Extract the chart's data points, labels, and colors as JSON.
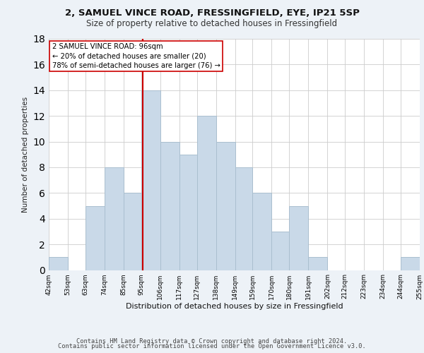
{
  "title1": "2, SAMUEL VINCE ROAD, FRESSINGFIELD, EYE, IP21 5SP",
  "title2": "Size of property relative to detached houses in Fressingfield",
  "xlabel": "Distribution of detached houses by size in Fressingfield",
  "ylabel": "Number of detached properties",
  "bin_labels": [
    "42sqm",
    "53sqm",
    "63sqm",
    "74sqm",
    "85sqm",
    "95sqm",
    "106sqm",
    "117sqm",
    "127sqm",
    "138sqm",
    "149sqm",
    "159sqm",
    "170sqm",
    "180sqm",
    "191sqm",
    "202sqm",
    "212sqm",
    "223sqm",
    "234sqm",
    "244sqm",
    "255sqm"
  ],
  "bar_values": [
    1,
    0,
    5,
    8,
    6,
    14,
    10,
    9,
    12,
    10,
    8,
    6,
    3,
    5,
    1,
    0,
    0,
    0,
    0,
    1
  ],
  "bar_color": "#c9d9e8",
  "bar_edgecolor": "#aabfcf",
  "vline_color": "#cc0000",
  "annotation_lines": [
    "2 SAMUEL VINCE ROAD: 96sqm",
    "← 20% of detached houses are smaller (20)",
    "78% of semi-detached houses are larger (76) →"
  ],
  "annotation_box_color": "#cc0000",
  "ylim": [
    0,
    18
  ],
  "yticks": [
    0,
    2,
    4,
    6,
    8,
    10,
    12,
    14,
    16,
    18
  ],
  "bin_edges": [
    42,
    53,
    63,
    74,
    85,
    95,
    106,
    117,
    127,
    138,
    149,
    159,
    170,
    180,
    191,
    202,
    212,
    223,
    234,
    244,
    255
  ],
  "footer1": "Contains HM Land Registry data © Crown copyright and database right 2024.",
  "footer2": "Contains public sector information licensed under the Open Government Licence v3.0.",
  "background_color": "#edf2f7",
  "plot_bg_color": "#ffffff",
  "grid_color": "#cccccc"
}
